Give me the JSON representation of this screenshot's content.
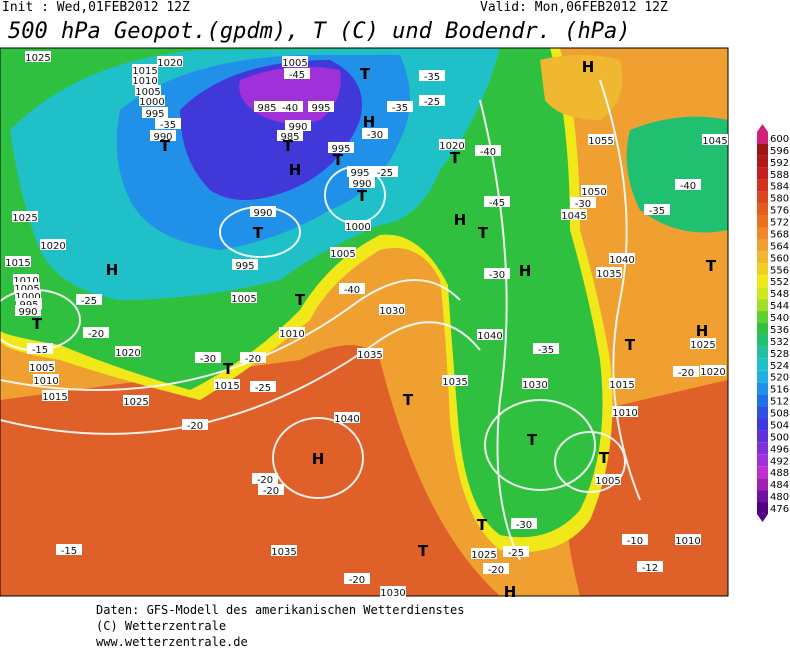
{
  "header": {
    "init": "Init : Wed,01FEB2012 12Z",
    "valid": "Valid: Mon,06FEB2012 12Z",
    "title": "500 hPa Geopot.(gpdm), T (C) und Bodendr. (hPa)"
  },
  "map_labels": [
    "1025",
    "1020",
    "1015",
    "1010",
    "1005",
    "1000",
    "995",
    "-35",
    "990",
    "T",
    "1005",
    "-45",
    "T",
    "-35",
    "H",
    "985",
    "-40",
    "995",
    "990",
    "985",
    "T",
    "H",
    "-35",
    "-25",
    "H",
    "-30",
    "995",
    "T",
    "995",
    "990",
    "-25",
    "T",
    "1020",
    "T",
    "-40",
    "1055",
    "1045",
    "-40",
    "-35",
    "1050",
    "-30",
    "1045",
    "-45",
    "H",
    "T",
    "990",
    "T",
    "1000",
    "995",
    "1005",
    "1025",
    "1020",
    "1015",
    "H",
    "1010",
    "1005",
    "1000",
    "995",
    "990",
    "T",
    "-25",
    "-20",
    "-15",
    "1005",
    "1010",
    "1015",
    "1020",
    "-30",
    "1005",
    "T",
    "1010",
    "T",
    "-20",
    "1015",
    "-25",
    "1025",
    "-20",
    "-40",
    "1030",
    "1035",
    "1040",
    "1035",
    "T",
    "-35",
    "1030",
    "H",
    "-30",
    "1035",
    "1040",
    "T",
    "H",
    "1025",
    "T",
    "-20",
    "1020",
    "1015",
    "1010",
    "1040",
    "H",
    "T",
    "T",
    "1005",
    "-20",
    "-20",
    "-15",
    "1035",
    "T",
    "1025",
    "-20",
    "-25",
    "T",
    "-30",
    "-10",
    "1010",
    "-12",
    "H",
    "1030",
    "-20"
  ],
  "colorbar": {
    "labels": [
      600,
      596,
      592,
      588,
      584,
      580,
      576,
      572,
      568,
      564,
      560,
      556,
      552,
      548,
      544,
      540,
      536,
      532,
      528,
      524,
      520,
      516,
      512,
      508,
      504,
      500,
      496,
      492,
      488,
      484,
      480,
      476
    ],
    "colors": [
      "#d0207a",
      "#a01414",
      "#b01818",
      "#c42020",
      "#d43020",
      "#dc4820",
      "#e45c20",
      "#ec7020",
      "#f08828",
      "#f0a030",
      "#f0b830",
      "#f0d020",
      "#f0e818",
      "#d0e820",
      "#a0e028",
      "#60d030",
      "#30c040",
      "#20c070",
      "#20c0a0",
      "#20c0c8",
      "#20b0e0",
      "#2090e8",
      "#2070e8",
      "#3050e0",
      "#4038d8",
      "#6030d8",
      "#8030d8",
      "#a030d8",
      "#c030d0",
      "#a020b0",
      "#7010a0",
      "#500080"
    ]
  },
  "footer": [
    "Daten: GFS-Modell des amerikanischen Wetterdienstes",
    "(C) Wetterzentrale",
    "www.wetterzentrale.de"
  ]
}
